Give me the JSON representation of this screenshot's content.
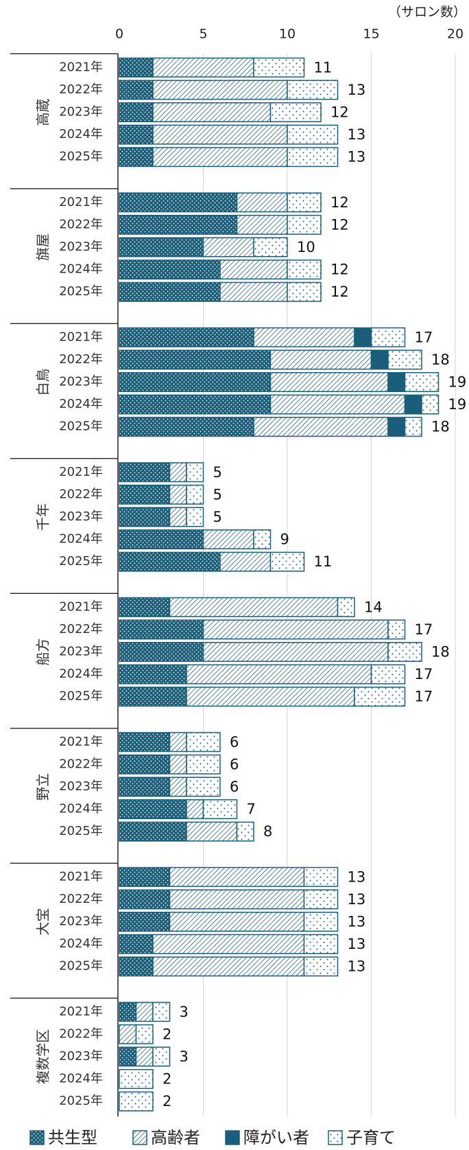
{
  "chart_data": {
    "type": "bar",
    "orientation": "horizontal",
    "stacked": true,
    "unit_label": "（サロン数）",
    "xlim": [
      0,
      20
    ],
    "xticks": [
      0,
      5,
      10,
      15,
      20
    ],
    "grid": true,
    "legend_position": "bottom",
    "series": [
      {
        "name": "共生型",
        "color": "#1b5e7b",
        "pattern": "dots-dark"
      },
      {
        "name": "高齢者",
        "color": "#1b5e7b",
        "pattern": "hatch"
      },
      {
        "name": "障がい者",
        "color": "#1b5e7b",
        "pattern": "solid"
      },
      {
        "name": "子育て",
        "color": "#1b5e7b",
        "pattern": "dots-light"
      }
    ],
    "groups": [
      {
        "name": "高蔵",
        "categories": [
          "2021年",
          "2022年",
          "2023年",
          "2024年",
          "2025年"
        ],
        "stacks": [
          [
            2,
            6,
            0,
            3
          ],
          [
            2,
            8,
            0,
            3
          ],
          [
            2,
            7,
            0,
            3
          ],
          [
            2,
            8,
            0,
            3
          ],
          [
            2,
            8,
            0,
            3
          ]
        ],
        "totals": [
          11,
          13,
          12,
          13,
          13
        ]
      },
      {
        "name": "旗屋",
        "categories": [
          "2021年",
          "2022年",
          "2023年",
          "2024年",
          "2025年"
        ],
        "stacks": [
          [
            7,
            3,
            0,
            2
          ],
          [
            7,
            3,
            0,
            2
          ],
          [
            5,
            3,
            0,
            2
          ],
          [
            6,
            4,
            0,
            2
          ],
          [
            6,
            4,
            0,
            2
          ]
        ],
        "totals": [
          12,
          12,
          10,
          12,
          12
        ]
      },
      {
        "name": "白鳥",
        "categories": [
          "2021年",
          "2022年",
          "2023年",
          "2024年",
          "2025年"
        ],
        "stacks": [
          [
            8,
            6,
            1,
            2
          ],
          [
            9,
            6,
            1,
            2
          ],
          [
            9,
            7,
            1,
            2
          ],
          [
            9,
            8,
            1,
            1
          ],
          [
            8,
            8,
            1,
            1
          ]
        ],
        "totals": [
          17,
          18,
          19,
          19,
          18
        ]
      },
      {
        "name": "千年",
        "categories": [
          "2021年",
          "2022年",
          "2023年",
          "2024年",
          "2025年"
        ],
        "stacks": [
          [
            3,
            1,
            0,
            1
          ],
          [
            3,
            1,
            0,
            1
          ],
          [
            3,
            1,
            0,
            1
          ],
          [
            5,
            3,
            0,
            1
          ],
          [
            6,
            3,
            0,
            2
          ]
        ],
        "totals": [
          5,
          5,
          5,
          9,
          11
        ]
      },
      {
        "name": "船方",
        "categories": [
          "2021年",
          "2022年",
          "2023年",
          "2024年",
          "2025年"
        ],
        "stacks": [
          [
            3,
            10,
            0,
            1
          ],
          [
            5,
            11,
            0,
            1
          ],
          [
            5,
            11,
            0,
            2
          ],
          [
            4,
            11,
            0,
            2
          ],
          [
            4,
            10,
            0,
            3
          ]
        ],
        "totals": [
          14,
          17,
          18,
          17,
          17
        ]
      },
      {
        "name": "野立",
        "categories": [
          "2021年",
          "2022年",
          "2023年",
          "2024年",
          "2025年"
        ],
        "stacks": [
          [
            3,
            1,
            0,
            2
          ],
          [
            3,
            1,
            0,
            2
          ],
          [
            3,
            1,
            0,
            2
          ],
          [
            4,
            1,
            0,
            2
          ],
          [
            4,
            3,
            0,
            1
          ]
        ],
        "totals": [
          6,
          6,
          6,
          7,
          8
        ]
      },
      {
        "name": "大宝",
        "categories": [
          "2021年",
          "2022年",
          "2023年",
          "2024年",
          "2025年"
        ],
        "stacks": [
          [
            3,
            8,
            0,
            2
          ],
          [
            3,
            8,
            0,
            2
          ],
          [
            3,
            8,
            0,
            2
          ],
          [
            2,
            9,
            0,
            2
          ],
          [
            2,
            9,
            0,
            2
          ]
        ],
        "totals": [
          13,
          13,
          13,
          13,
          13
        ]
      },
      {
        "name": "複数学区",
        "categories": [
          "2021年",
          "2022年",
          "2023年",
          "2024年",
          "2025年"
        ],
        "stacks": [
          [
            1,
            1,
            0,
            1
          ],
          [
            0,
            1,
            0,
            1
          ],
          [
            1,
            1,
            0,
            1
          ],
          [
            0,
            0,
            0,
            2
          ],
          [
            0,
            0,
            0,
            2
          ]
        ],
        "totals": [
          3,
          2,
          3,
          2,
          2
        ]
      }
    ]
  }
}
